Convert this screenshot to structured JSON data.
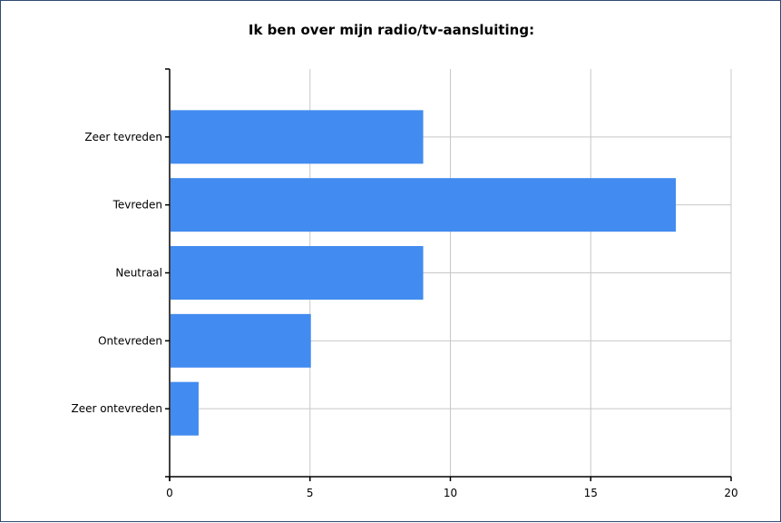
{
  "chart_data": {
    "type": "bar",
    "orientation": "horizontal",
    "title": "Ik ben over mijn radio/tv-aansluiting:",
    "categories": [
      "Zeer tevreden",
      "Tevreden",
      "Neutraal",
      "Ontevreden",
      "Zeer ontevreden"
    ],
    "values": [
      9,
      18,
      9,
      5,
      1
    ],
    "xlim": [
      0,
      20
    ],
    "xticks": [
      "0",
      "5",
      "10",
      "15",
      "20"
    ],
    "xlabel": "",
    "ylabel": "",
    "grid": true,
    "legend": "none",
    "bar_color": "#428bf0"
  }
}
